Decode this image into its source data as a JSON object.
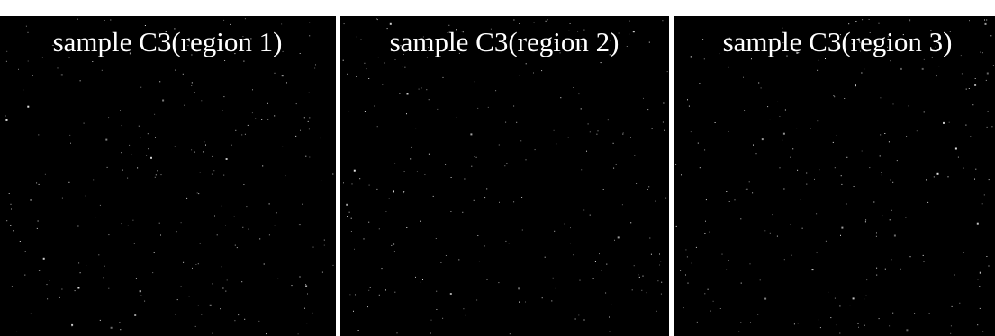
{
  "panels": [
    {
      "label": "sample C3(region 1)"
    },
    {
      "label": "sample C3(region 2)"
    },
    {
      "label": "sample C3(region 3)"
    }
  ]
}
